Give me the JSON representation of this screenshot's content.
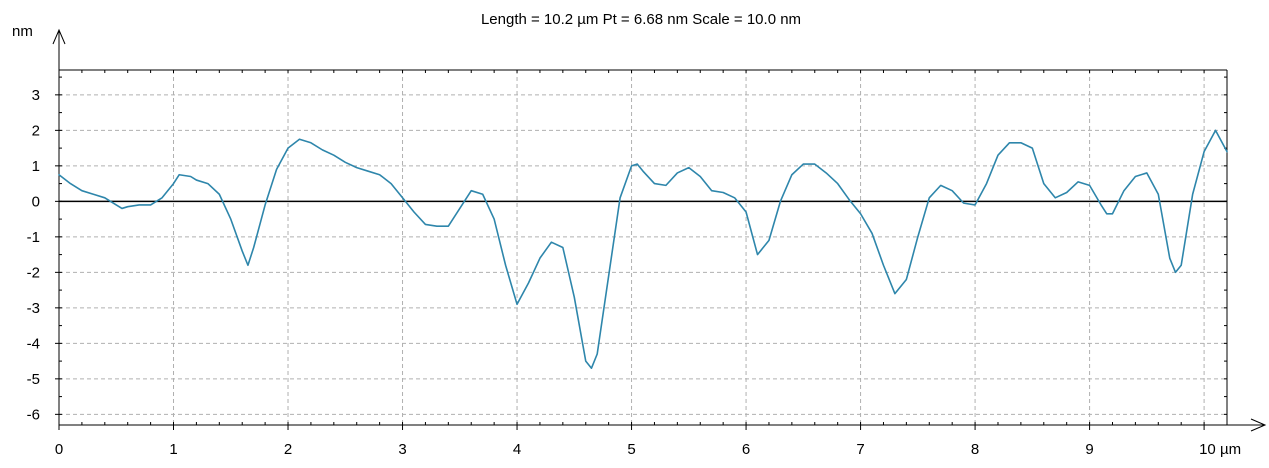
{
  "chart_data": {
    "type": "line",
    "title": "Length = 10.2 µm  Pt = 6.68 nm  Scale = 10.0 nm",
    "ylabel": "nm",
    "xunit": "µm",
    "xlim": [
      0,
      10.2
    ],
    "ylim": [
      -6.3,
      3.7
    ],
    "xticks": [
      0,
      1,
      2,
      3,
      4,
      5,
      6,
      7,
      8,
      9,
      10
    ],
    "yticks": [
      3,
      2,
      1,
      0,
      -1,
      -2,
      -3,
      -4,
      -5,
      -6
    ],
    "grid": true,
    "legend": "none",
    "colors": {
      "series": "#2e86ab",
      "grid": "#b0b0b0",
      "zero_line": "#000000",
      "frame": "#000000"
    },
    "series": [
      {
        "x": [
          0.0,
          0.1,
          0.2,
          0.3,
          0.4,
          0.5,
          0.55,
          0.6,
          0.7,
          0.8,
          0.9,
          1.0,
          1.05,
          1.15,
          1.2,
          1.3,
          1.4,
          1.5,
          1.6,
          1.65,
          1.7,
          1.8,
          1.9,
          2.0,
          2.1,
          2.2,
          2.3,
          2.4,
          2.5,
          2.6,
          2.7,
          2.8,
          2.9,
          3.0,
          3.1,
          3.2,
          3.3,
          3.4,
          3.5,
          3.6,
          3.7,
          3.8,
          3.9,
          4.0,
          4.05,
          4.1,
          4.2,
          4.3,
          4.4,
          4.5,
          4.6,
          4.65,
          4.7,
          4.8,
          4.9,
          5.0,
          5.05,
          5.1,
          5.2,
          5.3,
          5.4,
          5.5,
          5.6,
          5.7,
          5.8,
          5.9,
          6.0,
          6.1,
          6.2,
          6.3,
          6.4,
          6.5,
          6.6,
          6.7,
          6.8,
          6.9,
          7.0,
          7.1,
          7.2,
          7.3,
          7.4,
          7.5,
          7.6,
          7.7,
          7.8,
          7.9,
          8.0,
          8.1,
          8.2,
          8.3,
          8.4,
          8.5,
          8.6,
          8.7,
          8.8,
          8.9,
          9.0,
          9.1,
          9.15,
          9.2,
          9.3,
          9.4,
          9.5,
          9.6,
          9.7,
          9.75,
          9.8,
          9.9,
          10.0,
          10.1,
          10.2
        ],
        "y": [
          0.75,
          0.5,
          0.3,
          0.2,
          0.1,
          -0.1,
          -0.2,
          -0.15,
          -0.1,
          -0.1,
          0.1,
          0.5,
          0.75,
          0.7,
          0.6,
          0.5,
          0.2,
          -0.5,
          -1.4,
          -1.8,
          -1.3,
          -0.1,
          0.9,
          1.5,
          1.75,
          1.65,
          1.45,
          1.3,
          1.1,
          0.95,
          0.85,
          0.75,
          0.5,
          0.1,
          -0.3,
          -0.65,
          -0.7,
          -0.7,
          -0.2,
          0.3,
          0.2,
          -0.5,
          -1.8,
          -2.9,
          -2.6,
          -2.3,
          -1.6,
          -1.15,
          -1.3,
          -2.7,
          -4.5,
          -4.7,
          -4.3,
          -2.1,
          0.1,
          1.0,
          1.05,
          0.85,
          0.5,
          0.45,
          0.8,
          0.95,
          0.7,
          0.3,
          0.25,
          0.1,
          -0.3,
          -1.5,
          -1.1,
          0.0,
          0.75,
          1.05,
          1.05,
          0.8,
          0.5,
          0.05,
          -0.35,
          -0.9,
          -1.8,
          -2.6,
          -2.2,
          -1.0,
          0.1,
          0.45,
          0.3,
          -0.05,
          -0.1,
          0.5,
          1.3,
          1.65,
          1.65,
          1.5,
          0.5,
          0.1,
          0.25,
          0.55,
          0.45,
          -0.1,
          -0.35,
          -0.35,
          0.3,
          0.7,
          0.8,
          0.2,
          -1.6,
          -2.0,
          -1.8,
          0.2,
          1.4,
          2.0,
          1.4
        ]
      }
    ]
  }
}
